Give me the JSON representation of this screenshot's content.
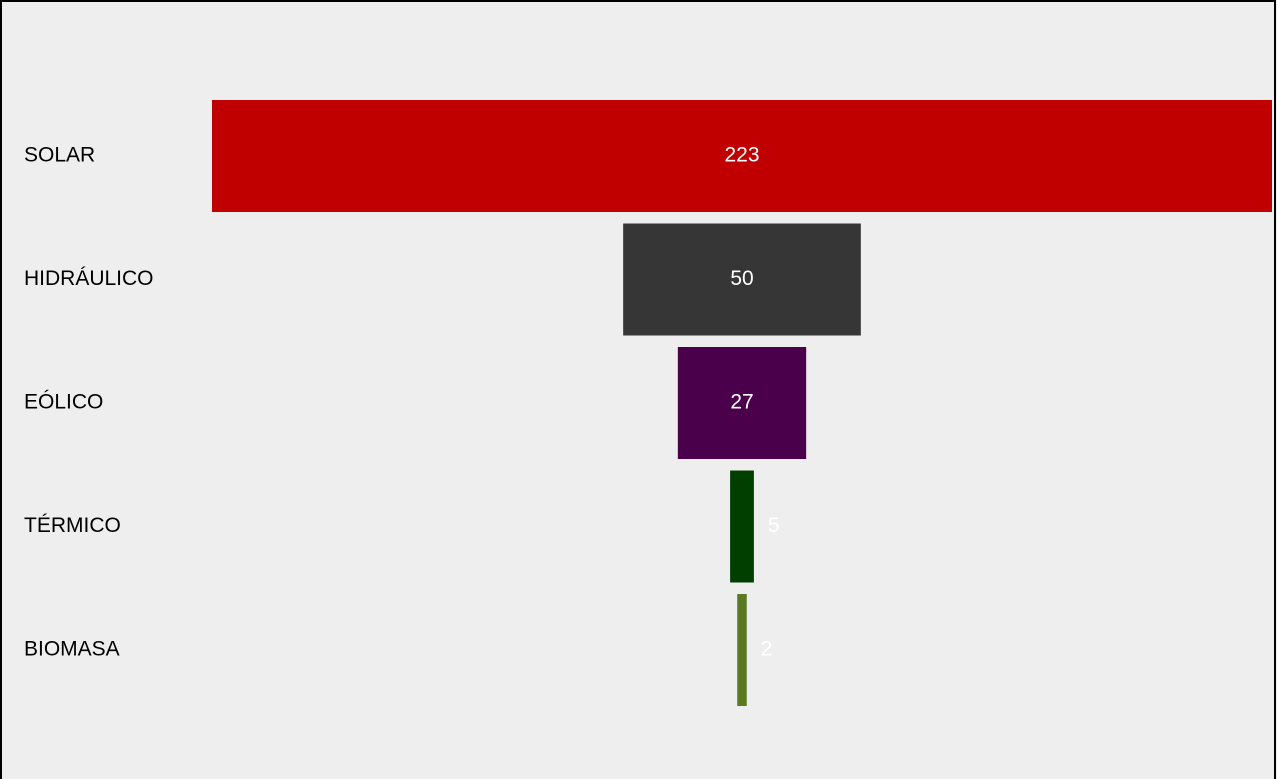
{
  "chart_data": {
    "type": "funnel",
    "categories": [
      "SOLAR",
      "HIDRÁULICO",
      "EÓLICO",
      "TÉRMICO",
      "BIOMASA"
    ],
    "values": [
      223,
      50,
      27,
      5,
      2
    ],
    "colors": [
      "#c00000",
      "#363636",
      "#4b004b",
      "#003f00",
      "#5a7a22"
    ]
  }
}
